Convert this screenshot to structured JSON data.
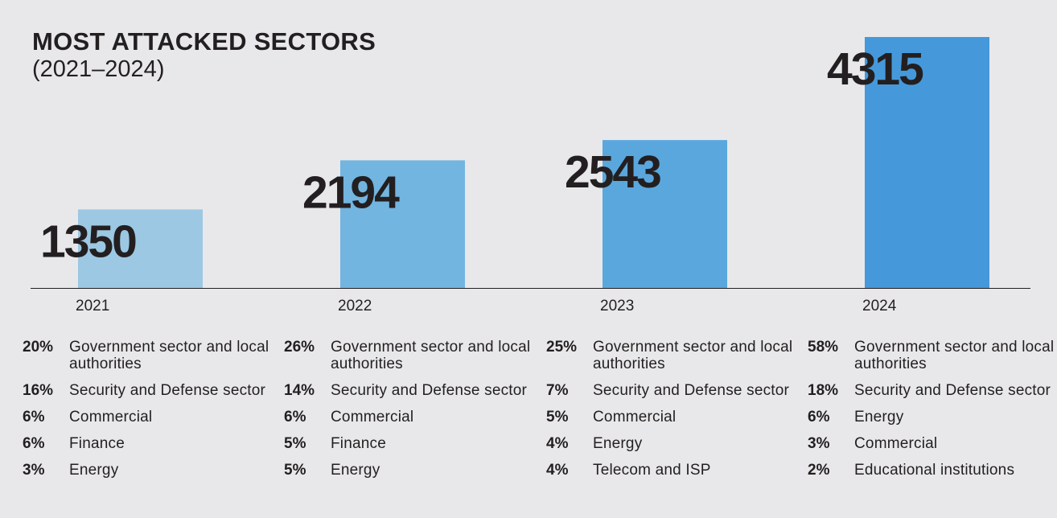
{
  "chart_data": {
    "type": "bar",
    "title": "MOST ATTACKED SECTORS",
    "subtitle": "(2021–2024)",
    "categories": [
      "2021",
      "2022",
      "2023",
      "2024"
    ],
    "values": [
      1350,
      2194,
      2543,
      4315
    ],
    "data_labels": [
      "1350",
      "2194",
      "2543",
      "4315"
    ],
    "colors": [
      "#9cc8e3",
      "#72b5e0",
      "#5aa7de",
      "#4599da"
    ],
    "grid": false,
    "legend": "none"
  },
  "sectors": [
    {
      "year": "2021",
      "items": [
        {
          "pct": "20%",
          "label": "Government sector and local authorities"
        },
        {
          "pct": "16%",
          "label": "Security and Defense sector"
        },
        {
          "pct": "6%",
          "label": "Commercial"
        },
        {
          "pct": "6%",
          "label": "Finance"
        },
        {
          "pct": "3%",
          "label": "Energy"
        }
      ]
    },
    {
      "year": "2022",
      "items": [
        {
          "pct": "26%",
          "label": "Government sector and local authorities"
        },
        {
          "pct": "14%",
          "label": "Security and Defense sector"
        },
        {
          "pct": "6%",
          "label": "Commercial"
        },
        {
          "pct": "5%",
          "label": "Finance"
        },
        {
          "pct": "5%",
          "label": "Energy"
        }
      ]
    },
    {
      "year": "2023",
      "items": [
        {
          "pct": "25%",
          "label": "Government sector and local authorities"
        },
        {
          "pct": "7%",
          "label": "Security and Defense sector"
        },
        {
          "pct": "5%",
          "label": "Commercial"
        },
        {
          "pct": "4%",
          "label": "Energy"
        },
        {
          "pct": "4%",
          "label": "Telecom and ISP"
        }
      ]
    },
    {
      "year": "2024",
      "items": [
        {
          "pct": "58%",
          "label": "Government sector and local authorities"
        },
        {
          "pct": "18%",
          "label": "Security and Defense sector"
        },
        {
          "pct": "6%",
          "label": "Energy"
        },
        {
          "pct": "3%",
          "label": "Commercial"
        },
        {
          "pct": "2%",
          "label": "Educational institutions"
        }
      ]
    }
  ]
}
